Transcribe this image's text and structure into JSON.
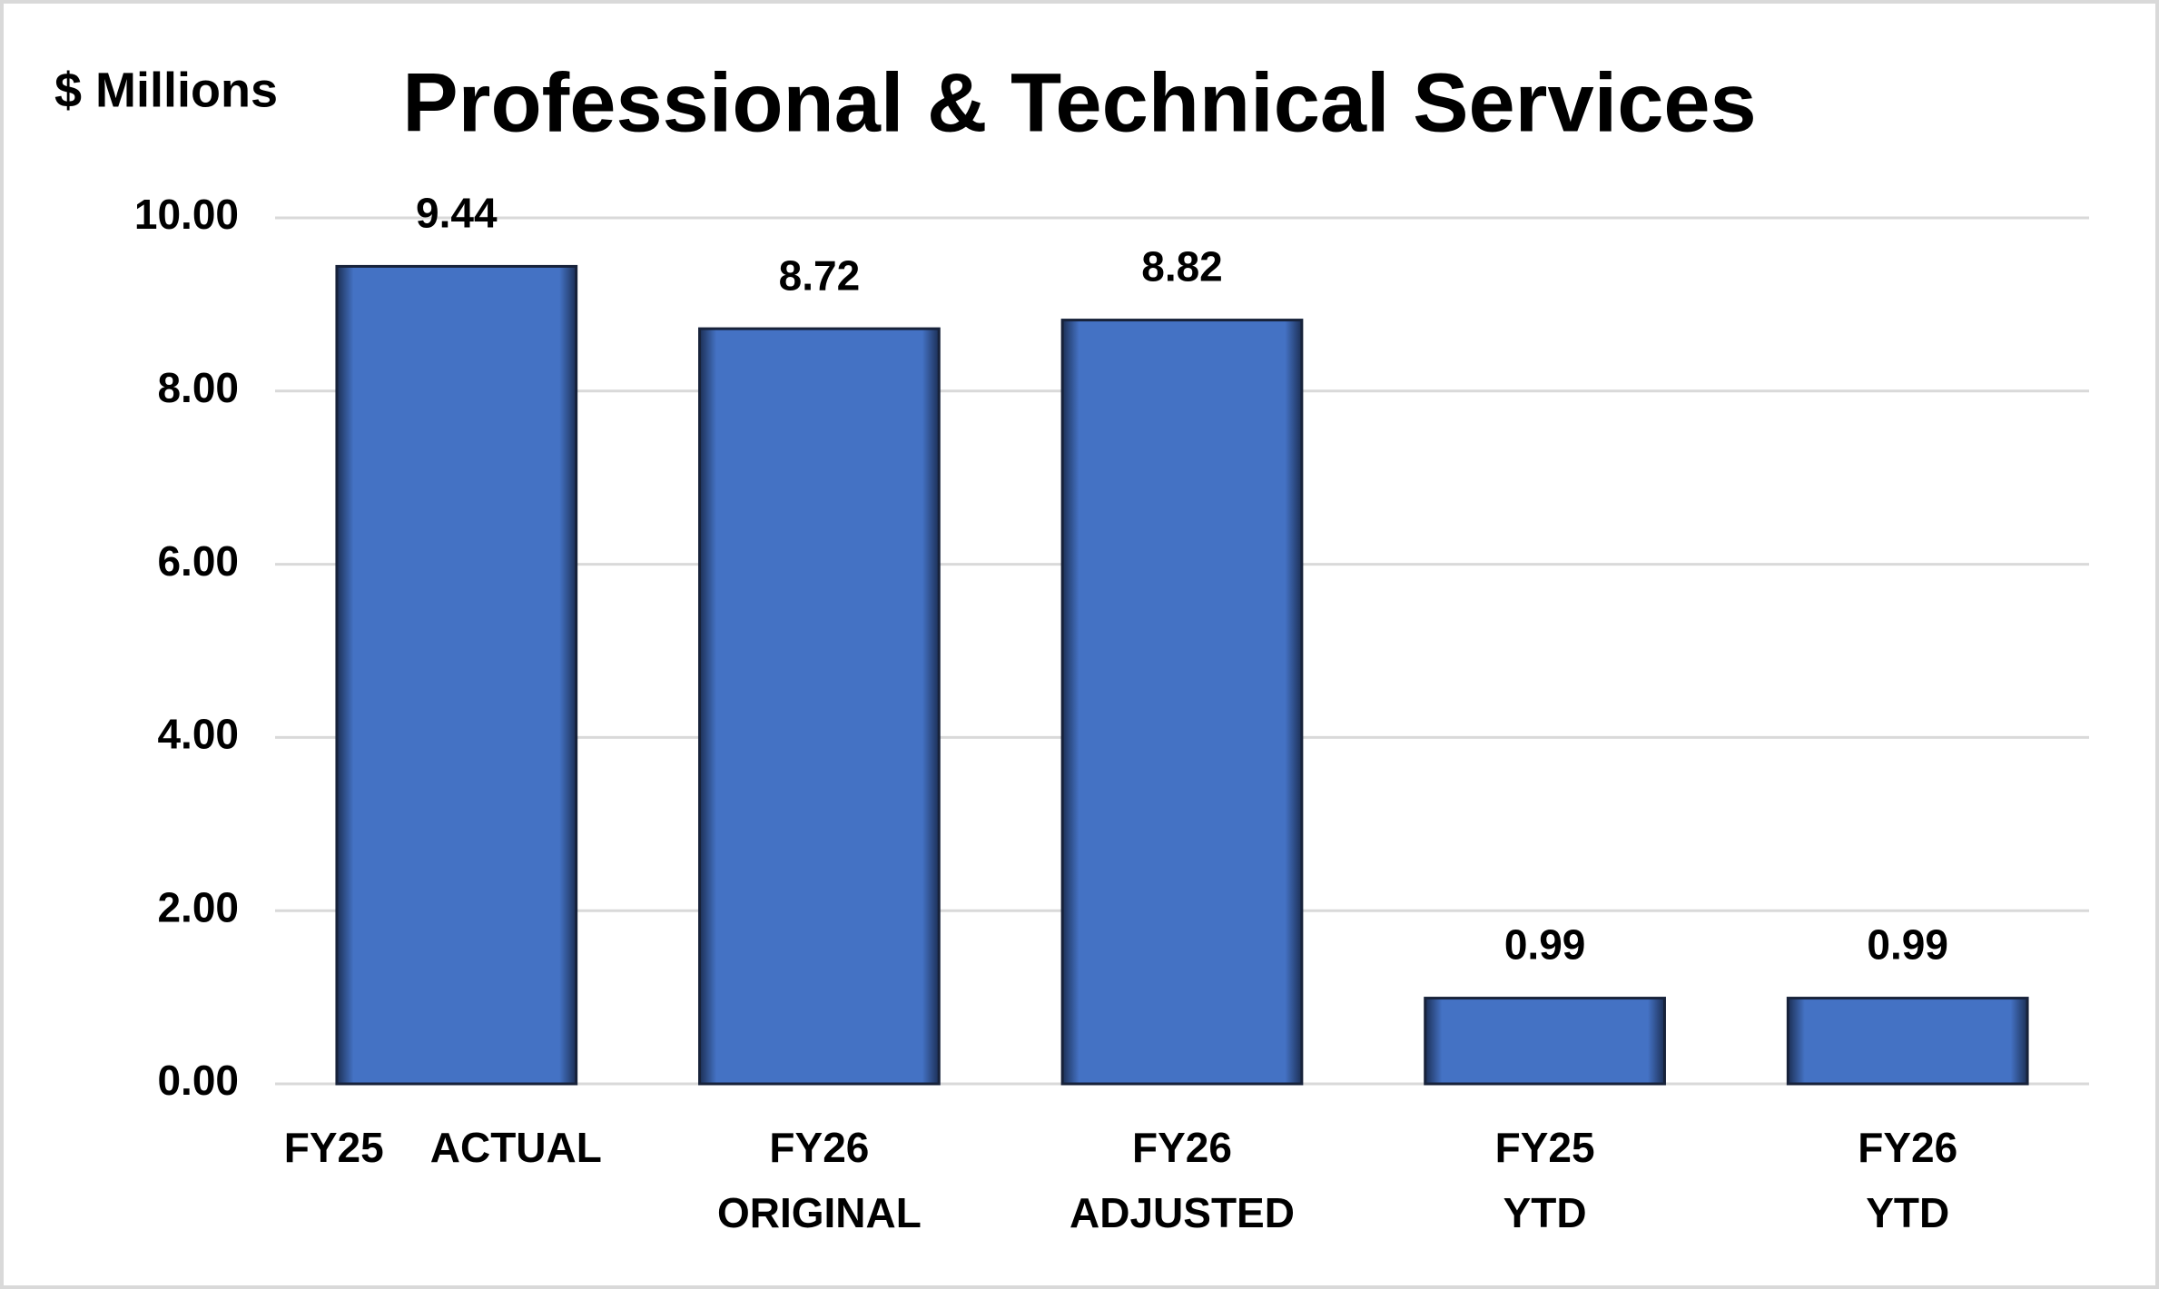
{
  "chart_data": {
    "type": "bar",
    "title": "Professional & Technical Services",
    "y_axis_label": "$ Millions",
    "categories": [
      [
        "FY25 ACTUAL"
      ],
      [
        "FY26",
        "ORIGINAL"
      ],
      [
        "FY26",
        "ADJUSTED"
      ],
      [
        "FY25",
        "YTD"
      ],
      [
        "FY26",
        "YTD"
      ]
    ],
    "values": [
      9.44,
      8.72,
      8.82,
      0.99,
      0.99
    ],
    "color": "#4472c4",
    "ylim": [
      0,
      10
    ],
    "yticks": [
      {
        "value": 0,
        "label": "0.00"
      },
      {
        "value": 2,
        "label": "2.00"
      },
      {
        "value": 4,
        "label": "4.00"
      },
      {
        "value": 6,
        "label": "6.00"
      },
      {
        "value": 8,
        "label": "8.00"
      },
      {
        "value": 10,
        "label": "10.00"
      }
    ],
    "grid": true
  }
}
